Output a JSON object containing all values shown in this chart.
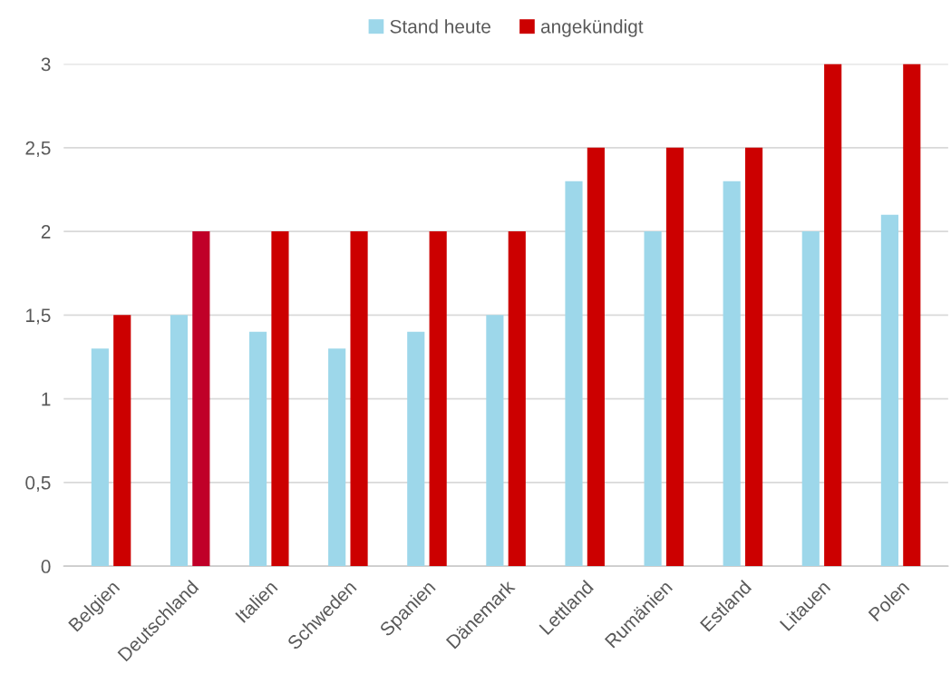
{
  "chart_data": {
    "type": "bar",
    "categories": [
      "Belgien",
      "Deutschland",
      "Italien",
      "Schweden",
      "Spanien",
      "Dänemark",
      "Lettland",
      "Rumänien",
      "Estland",
      "Litauen",
      "Polen"
    ],
    "series": [
      {
        "name": "Stand heute",
        "color": "#9dd7ea",
        "values": [
          1.3,
          1.5,
          1.4,
          1.3,
          1.4,
          1.5,
          2.3,
          2.0,
          2.3,
          2.0,
          2.1
        ]
      },
      {
        "name": "angekündigt",
        "color": "#cc0000",
        "colors": [
          "#cc0000",
          "#c00028",
          "#cc0000",
          "#cc0000",
          "#cc0000",
          "#cc0000",
          "#cc0000",
          "#cc0000",
          "#cc0000",
          "#cc0000",
          "#cc0000"
        ],
        "values": [
          1.5,
          2,
          2,
          2,
          2,
          2,
          2.5,
          2.5,
          2.5,
          3,
          3
        ]
      }
    ],
    "ylim": [
      0,
      3
    ],
    "yticks": [
      0,
      {
        "value": 0.5,
        "label": "0,5"
      },
      1,
      {
        "value": 1.5,
        "label": "1,5"
      },
      2,
      {
        "value": 2.5,
        "label": "2,5"
      },
      3
    ],
    "grid": "y",
    "legend": "top"
  }
}
